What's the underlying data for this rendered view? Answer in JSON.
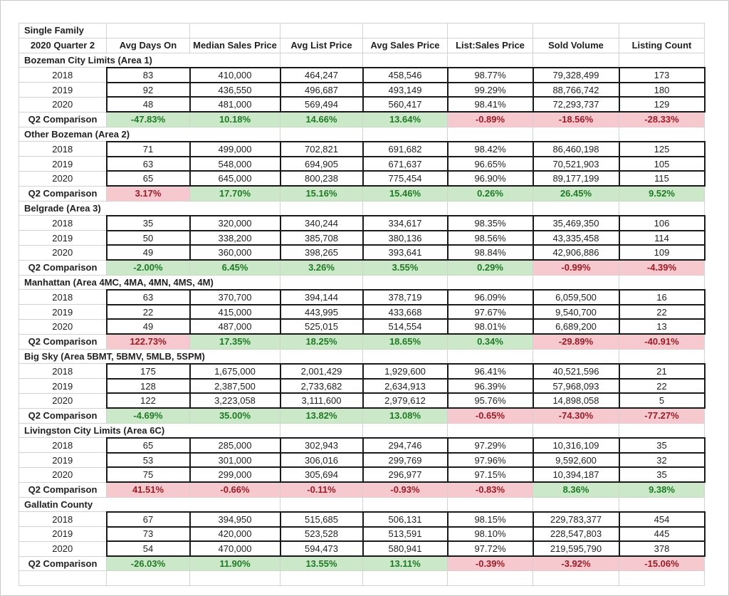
{
  "table": {
    "title": "Single Family",
    "subtitle": "2020 Quarter 2",
    "comparison_label": "Q2 Comparison",
    "columns": [
      "Avg Days On",
      "Median Sales Price",
      "Avg List Price",
      "Avg Sales Price",
      "List:Sales Price",
      "Sold Volume",
      "Listing Count"
    ],
    "sections": [
      {
        "name": "Bozeman City Limits (Area 1)",
        "rows": [
          {
            "label": "2018",
            "values": [
              "83",
              "410,000",
              "464,247",
              "458,546",
              "98.77%",
              "79,328,499",
              "173"
            ]
          },
          {
            "label": "2019",
            "values": [
              "92",
              "436,550",
              "496,687",
              "493,149",
              "99.29%",
              "88,766,742",
              "180"
            ]
          },
          {
            "label": "2020",
            "values": [
              "48",
              "481,000",
              "569,494",
              "560,417",
              "98.41%",
              "72,293,737",
              "129"
            ]
          }
        ],
        "comparison": {
          "values": [
            "-47.83%",
            "10.18%",
            "14.66%",
            "13.64%",
            "-0.89%",
            "-18.56%",
            "-28.33%"
          ],
          "status": [
            "positive",
            "positive",
            "positive",
            "positive",
            "negative",
            "negative",
            "negative"
          ]
        }
      },
      {
        "name": "Other Bozeman (Area 2)",
        "rows": [
          {
            "label": "2018",
            "values": [
              "71",
              "499,000",
              "702,821",
              "691,682",
              "98.42%",
              "86,460,198",
              "125"
            ]
          },
          {
            "label": "2019",
            "values": [
              "63",
              "548,000",
              "694,905",
              "671,637",
              "96.65%",
              "70,521,903",
              "105"
            ]
          },
          {
            "label": "2020",
            "values": [
              "65",
              "645,000",
              "800,238",
              "775,454",
              "96.90%",
              "89,177,199",
              "115"
            ]
          }
        ],
        "comparison": {
          "values": [
            "3.17%",
            "17.70%",
            "15.16%",
            "15.46%",
            "0.26%",
            "26.45%",
            "9.52%"
          ],
          "status": [
            "negative",
            "positive",
            "positive",
            "positive",
            "positive",
            "positive",
            "positive"
          ]
        }
      },
      {
        "name": "Belgrade (Area 3)",
        "rows": [
          {
            "label": "2018",
            "values": [
              "35",
              "320,000",
              "340,244",
              "334,617",
              "98.35%",
              "35,469,350",
              "106"
            ]
          },
          {
            "label": "2019",
            "values": [
              "50",
              "338,200",
              "385,708",
              "380,136",
              "98.56%",
              "43,335,458",
              "114"
            ]
          },
          {
            "label": "2020",
            "values": [
              "49",
              "360,000",
              "398,265",
              "393,641",
              "98.84%",
              "42,906,886",
              "109"
            ]
          }
        ],
        "comparison": {
          "values": [
            "-2.00%",
            "6.45%",
            "3.26%",
            "3.55%",
            "0.29%",
            "-0.99%",
            "-4.39%"
          ],
          "status": [
            "positive",
            "positive",
            "positive",
            "positive",
            "positive",
            "negative",
            "negative"
          ]
        }
      },
      {
        "name": "Manhattan (Area 4MC, 4MA, 4MN, 4MS, 4M)",
        "rows": [
          {
            "label": "2018",
            "values": [
              "63",
              "370,700",
              "394,144",
              "378,719",
              "96.09%",
              "6,059,500",
              "16"
            ]
          },
          {
            "label": "2019",
            "values": [
              "22",
              "415,000",
              "443,995",
              "433,668",
              "97.67%",
              "9,540,700",
              "22"
            ]
          },
          {
            "label": "2020",
            "values": [
              "49",
              "487,000",
              "525,015",
              "514,554",
              "98.01%",
              "6,689,200",
              "13"
            ]
          }
        ],
        "comparison": {
          "values": [
            "122.73%",
            "17.35%",
            "18.25%",
            "18.65%",
            "0.34%",
            "-29.89%",
            "-40.91%"
          ],
          "status": [
            "negative",
            "positive",
            "positive",
            "positive",
            "positive",
            "negative",
            "negative"
          ]
        }
      },
      {
        "name": "Big Sky (Area 5BMT, 5BMV, 5MLB, 5SPM)",
        "rows": [
          {
            "label": "2018",
            "values": [
              "175",
              "1,675,000",
              "2,001,429",
              "1,929,600",
              "96.41%",
              "40,521,596",
              "21"
            ]
          },
          {
            "label": "2019",
            "values": [
              "128",
              "2,387,500",
              "2,733,682",
              "2,634,913",
              "96.39%",
              "57,968,093",
              "22"
            ]
          },
          {
            "label": "2020",
            "values": [
              "122",
              "3,223,058",
              "3,111,600",
              "2,979,612",
              "95.76%",
              "14,898,058",
              "5"
            ]
          }
        ],
        "comparison": {
          "values": [
            "-4.69%",
            "35.00%",
            "13.82%",
            "13.08%",
            "-0.65%",
            "-74.30%",
            "-77.27%"
          ],
          "status": [
            "positive",
            "positive",
            "positive",
            "positive",
            "negative",
            "negative",
            "negative"
          ]
        }
      },
      {
        "name": "Livingston City Limits (Area 6C)",
        "rows": [
          {
            "label": "2018",
            "values": [
              "65",
              "285,000",
              "302,943",
              "294,746",
              "97.29%",
              "10,316,109",
              "35"
            ]
          },
          {
            "label": "2019",
            "values": [
              "53",
              "301,000",
              "306,016",
              "299,769",
              "97.96%",
              "9,592,600",
              "32"
            ]
          },
          {
            "label": "2020",
            "values": [
              "75",
              "299,000",
              "305,694",
              "296,977",
              "97.15%",
              "10,394,187",
              "35"
            ]
          }
        ],
        "comparison": {
          "values": [
            "41.51%",
            "-0.66%",
            "-0.11%",
            "-0.93%",
            "-0.83%",
            "8.36%",
            "9.38%"
          ],
          "status": [
            "negative",
            "negative",
            "negative",
            "negative",
            "negative",
            "positive",
            "positive"
          ]
        }
      },
      {
        "name": "Gallatin County",
        "rows": [
          {
            "label": "2018",
            "values": [
              "67",
              "394,950",
              "515,685",
              "506,131",
              "98.15%",
              "229,783,377",
              "454"
            ]
          },
          {
            "label": "2019",
            "values": [
              "73",
              "420,000",
              "523,528",
              "513,591",
              "98.10%",
              "228,547,803",
              "445"
            ]
          },
          {
            "label": "2020",
            "values": [
              "54",
              "470,000",
              "594,473",
              "580,941",
              "97.72%",
              "219,595,790",
              "378"
            ]
          }
        ],
        "comparison": {
          "values": [
            "-26.03%",
            "11.90%",
            "13.55%",
            "13.11%",
            "-0.39%",
            "-3.92%",
            "-15.06%"
          ],
          "status": [
            "positive",
            "positive",
            "positive",
            "positive",
            "negative",
            "negative",
            "negative"
          ]
        }
      }
    ]
  },
  "colors": {
    "positive_bg": "#cbe8c9",
    "positive_text": "#1e7b24",
    "negative_bg": "#f5c9cd",
    "negative_text": "#9e1b26",
    "grid_line": "#d2d2d2",
    "data_border": "#1a1a1a"
  }
}
